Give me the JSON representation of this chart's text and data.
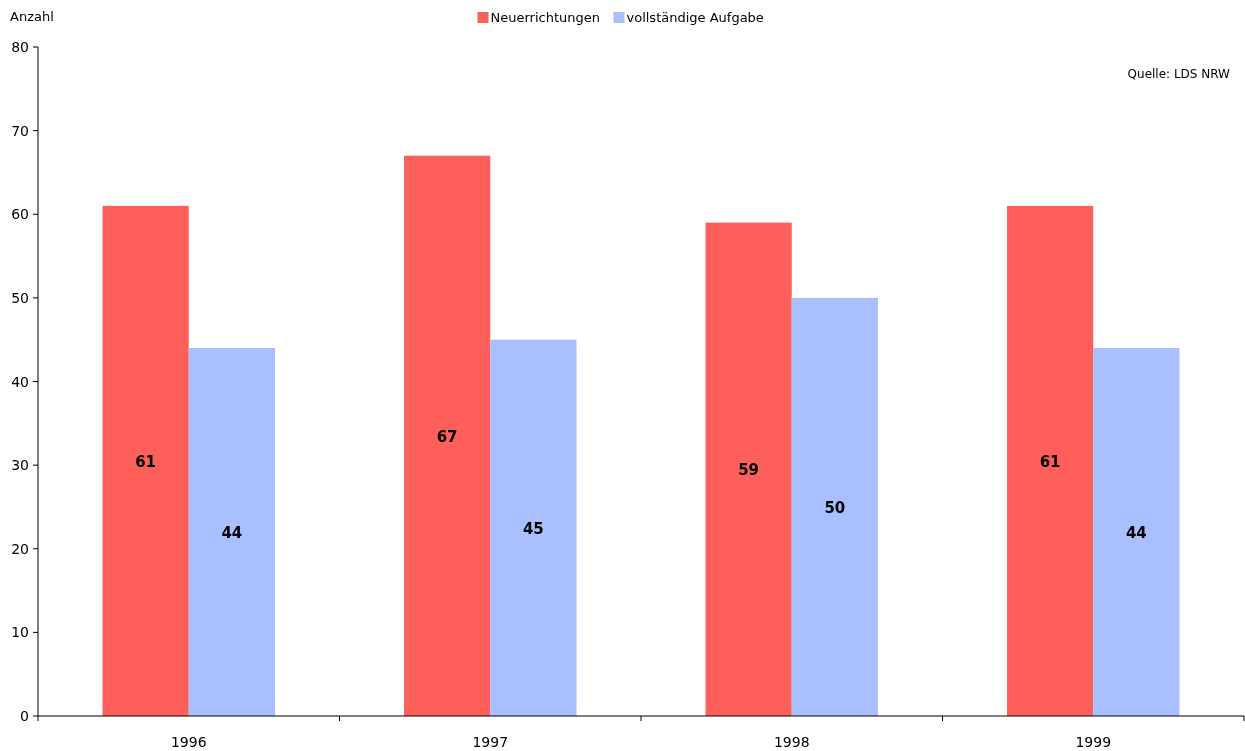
{
  "chart_data": {
    "type": "bar",
    "ylabel": "Anzahl",
    "categories": [
      "1996",
      "1997",
      "1998",
      "1999"
    ],
    "series": [
      {
        "name": "Neuerrichtungen",
        "color": "#ff5f5a",
        "values": [
          61,
          67,
          59,
          61
        ]
      },
      {
        "name": "vollständige Aufgabe",
        "color": "#a9bfff",
        "values": [
          44,
          45,
          50,
          44
        ]
      }
    ],
    "ylim": [
      0,
      80
    ],
    "yticks": [
      0,
      10,
      20,
      30,
      40,
      50,
      60,
      70,
      80
    ],
    "grid": false,
    "legend": "top",
    "data_labels": true,
    "annotations": [
      "Quelle: LDS NRW"
    ]
  }
}
